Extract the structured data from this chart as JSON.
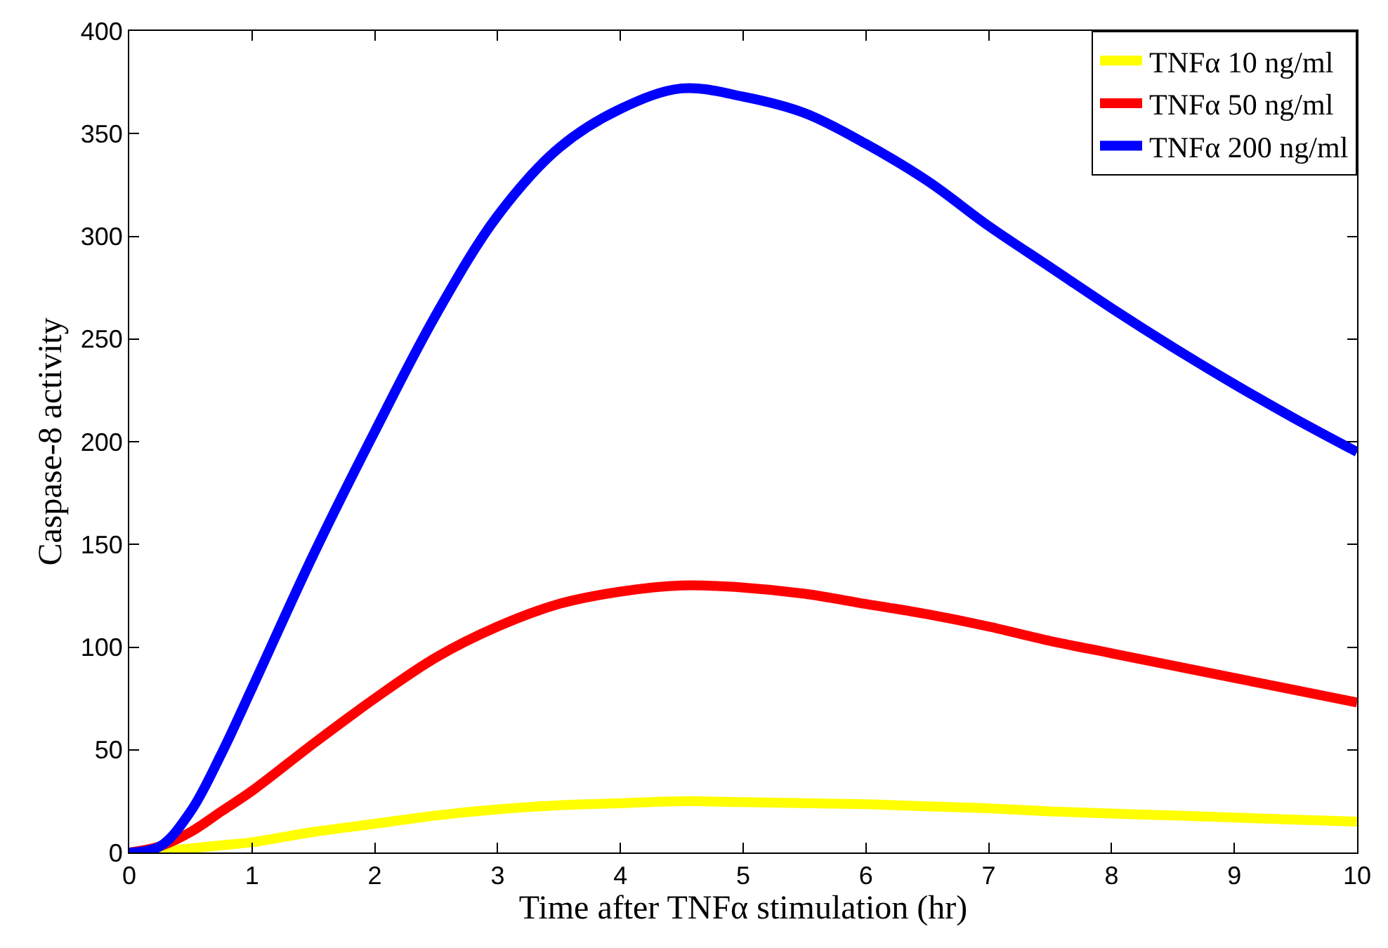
{
  "chart_data": {
    "type": "line",
    "xlabel": "Time after TNFα stimulation (hr)",
    "ylabel": "Caspase-8 activity",
    "x": [
      0,
      0.25,
      0.5,
      0.75,
      1,
      1.5,
      2,
      2.5,
      3,
      3.5,
      4,
      4.5,
      5,
      5.5,
      6,
      6.5,
      7,
      7.5,
      8,
      8.5,
      9,
      9.5,
      10
    ],
    "series": [
      {
        "name": "TNFα 10 ng/ml",
        "color": "#ffff00",
        "values": [
          0,
          0.5,
          2,
          3.5,
          5,
          10,
          14,
          18,
          21,
          23,
          24,
          25,
          24.5,
          24,
          23.5,
          22.5,
          21.5,
          20,
          19,
          18,
          17,
          16,
          15
        ]
      },
      {
        "name": "TNFα 50 ng/ml",
        "color": "#ff0000",
        "values": [
          0,
          3,
          10,
          20,
          30,
          53,
          75,
          95,
          110,
          121,
          127,
          130,
          129,
          126,
          121,
          116,
          110,
          103,
          97,
          91,
          85,
          79,
          73
        ]
      },
      {
        "name": "TNFα 200 ng/ml",
        "color": "#0000ff",
        "values": [
          0,
          3,
          20,
          48,
          80,
          145,
          205,
          262,
          310,
          343,
          362,
          372,
          368,
          360,
          345,
          327,
          305,
          285,
          265,
          246,
          228,
          211,
          195
        ]
      }
    ],
    "xlim": [
      0,
      10
    ],
    "xticks": [
      0,
      1,
      2,
      3,
      4,
      5,
      6,
      7,
      8,
      9,
      10
    ],
    "ylim": [
      0,
      400
    ],
    "yticks": [
      0,
      50,
      100,
      150,
      200,
      250,
      300,
      350,
      400
    ],
    "legend": "top right",
    "line_style": "solid"
  }
}
